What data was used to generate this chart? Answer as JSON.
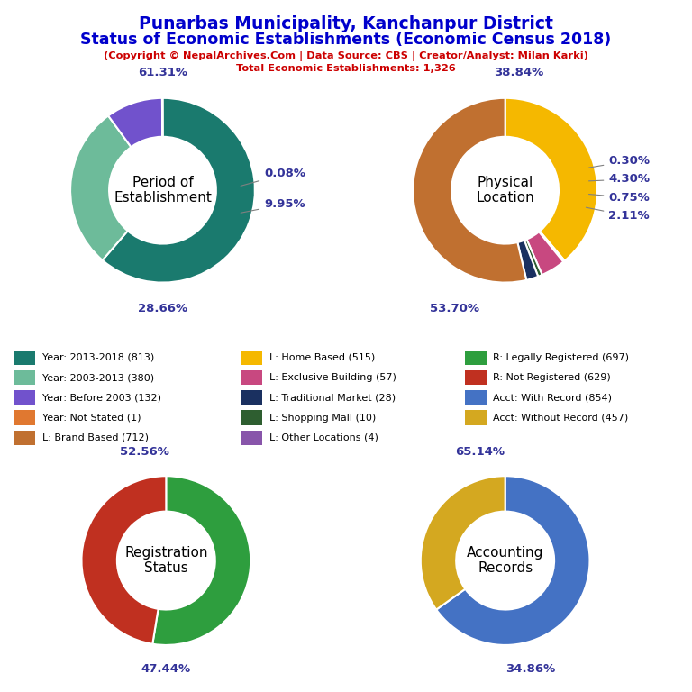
{
  "title_line1": "Punarbas Municipality, Kanchanpur District",
  "title_line2": "Status of Economic Establishments (Economic Census 2018)",
  "subtitle_line1": "(Copyright © NepalArchives.Com | Data Source: CBS | Creator/Analyst: Milan Karki)",
  "subtitle_line2": "Total Economic Establishments: 1,326",
  "title_color": "#0000cc",
  "subtitle_color": "#cc0000",
  "pie1": {
    "label": "Period of\nEstablishment",
    "values": [
      61.31,
      28.66,
      9.95,
      0.08
    ],
    "colors": [
      "#1a7a6e",
      "#6dbb9a",
      "#7152cc",
      "#e07830"
    ],
    "startangle": 90,
    "counterclock": false
  },
  "pie2": {
    "label": "Physical\nLocation",
    "values": [
      38.84,
      0.3,
      4.3,
      0.75,
      2.11,
      53.7
    ],
    "colors": [
      "#f5b800",
      "#8855aa",
      "#c84880",
      "#2e5e30",
      "#1a3060",
      "#c07030"
    ],
    "startangle": 90,
    "counterclock": false
  },
  "pie3": {
    "label": "Registration\nStatus",
    "values": [
      52.56,
      47.44
    ],
    "colors": [
      "#2e9e3e",
      "#c03020"
    ],
    "startangle": 90,
    "counterclock": false
  },
  "pie4": {
    "label": "Accounting\nRecords",
    "values": [
      65.14,
      34.86
    ],
    "colors": [
      "#4472c4",
      "#d4a820"
    ],
    "startangle": 90,
    "counterclock": false
  },
  "legend_items": [
    {
      "label": "Year: 2013-2018 (813)",
      "color": "#1a7a6e"
    },
    {
      "label": "Year: 2003-2013 (380)",
      "color": "#6dbb9a"
    },
    {
      "label": "Year: Before 2003 (132)",
      "color": "#7152cc"
    },
    {
      "label": "Year: Not Stated (1)",
      "color": "#e07830"
    },
    {
      "label": "L: Brand Based (712)",
      "color": "#c07030"
    },
    {
      "label": "L: Home Based (515)",
      "color": "#f5b800"
    },
    {
      "label": "L: Exclusive Building (57)",
      "color": "#c84880"
    },
    {
      "label": "L: Traditional Market (28)",
      "color": "#1a3060"
    },
    {
      "label": "L: Shopping Mall (10)",
      "color": "#2e5e30"
    },
    {
      "label": "L: Other Locations (4)",
      "color": "#8855aa"
    },
    {
      "label": "R: Legally Registered (697)",
      "color": "#2e9e3e"
    },
    {
      "label": "R: Not Registered (629)",
      "color": "#c03020"
    },
    {
      "label": "Acct: With Record (854)",
      "color": "#4472c4"
    },
    {
      "label": "Acct: Without Record (457)",
      "color": "#d4a820"
    }
  ],
  "pct_color": "#333399",
  "pct_fontsize": 9.5,
  "label_fontsize": 11,
  "donut_width": 0.42
}
